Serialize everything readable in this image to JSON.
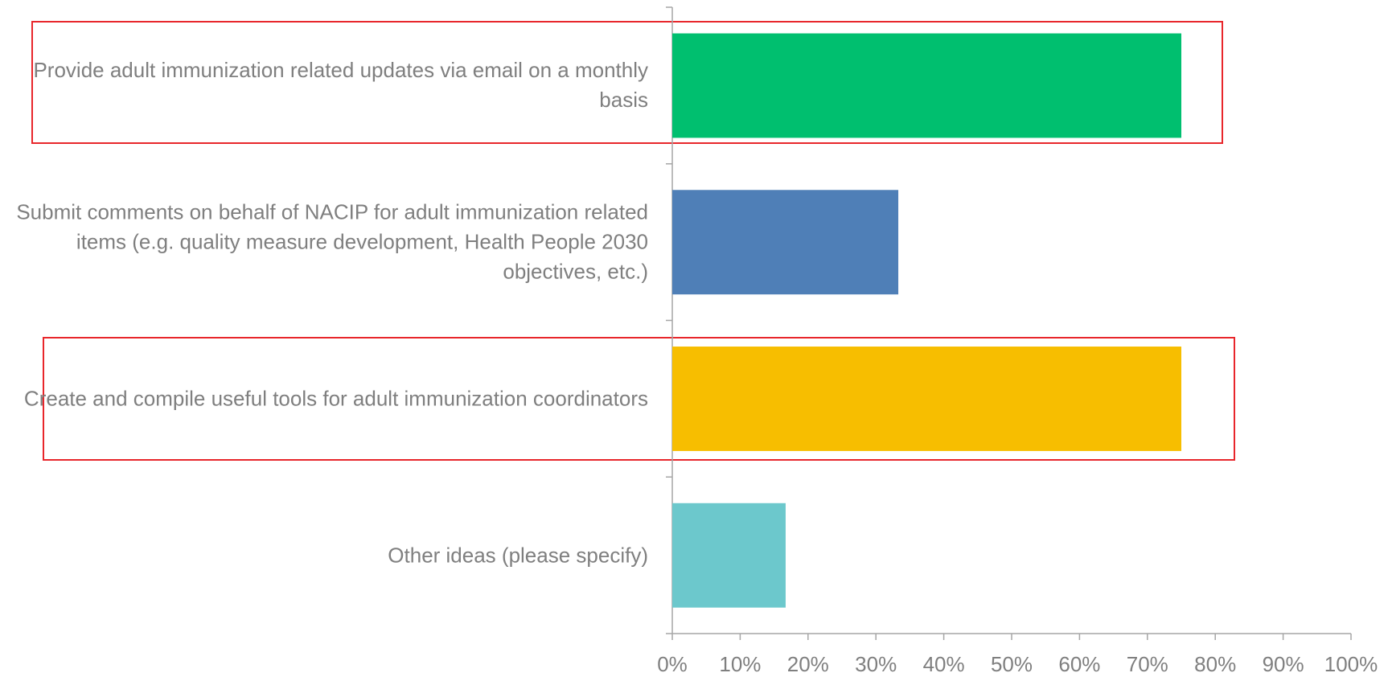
{
  "chart_data": {
    "type": "barh",
    "categories": [
      "Provide adult immunization related updates via email on a monthly basis",
      "Submit comments on behalf of NACIP for adult immunization related items (e.g. quality measure development, Health People 2030 objectives, etc.)",
      "Create and compile useful tools for adult immunization coordinators",
      "Other ideas (please specify)"
    ],
    "values": [
      75,
      33.3,
      75,
      16.7
    ],
    "colors": [
      "#00bf6f",
      "#4f7fb7",
      "#f7be00",
      "#6cc8cc"
    ],
    "xlim": [
      0,
      100
    ],
    "xticks": [
      {
        "value": 0,
        "label": "0%"
      },
      {
        "value": 10,
        "label": "10%"
      },
      {
        "value": 20,
        "label": "20%"
      },
      {
        "value": 30,
        "label": "30%"
      },
      {
        "value": 40,
        "label": "40%"
      },
      {
        "value": 50,
        "label": "50%"
      },
      {
        "value": 60,
        "label": "60%"
      },
      {
        "value": 70,
        "label": "70%"
      },
      {
        "value": 80,
        "label": "80%"
      },
      {
        "value": 90,
        "label": "90%"
      },
      {
        "value": 100,
        "label": "100%"
      }
    ]
  }
}
